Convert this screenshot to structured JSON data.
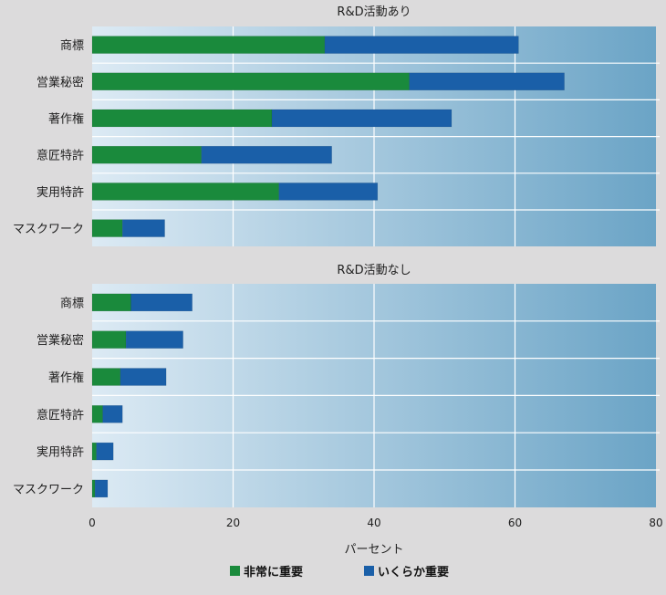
{
  "chart_data": {
    "type": "bar",
    "orientation": "horizontal",
    "stacked": true,
    "xlabel": "パーセント",
    "xlim": [
      0,
      80
    ],
    "xticks": [
      0,
      20,
      40,
      60,
      80
    ],
    "grid": true,
    "legend_position": "bottom",
    "categories": [
      "商標",
      "営業秘密",
      "著作権",
      "意匠特許",
      "実用特許",
      "マスクワーク"
    ],
    "series_names": [
      "非常に重要",
      "いくらか重要"
    ],
    "series_colors": [
      "#1a8a3c",
      "#1a5fa8"
    ],
    "panels": [
      {
        "title": "R&D活動あり",
        "series": [
          {
            "name": "非常に重要",
            "values": [
              33,
              45,
              25.5,
              15.5,
              26.5,
              4.3
            ]
          },
          {
            "name": "いくらか重要",
            "values": [
              27.5,
              22,
              25.5,
              18.5,
              14,
              6
            ]
          }
        ]
      },
      {
        "title": "R&D活動なし",
        "series": [
          {
            "name": "非常に重要",
            "values": [
              5.5,
              4.8,
              4,
              1.5,
              0.6,
              0.4
            ]
          },
          {
            "name": "いくらか重要",
            "values": [
              8.7,
              8.1,
              6.5,
              2.8,
              2.4,
              1.8
            ]
          }
        ]
      }
    ]
  }
}
